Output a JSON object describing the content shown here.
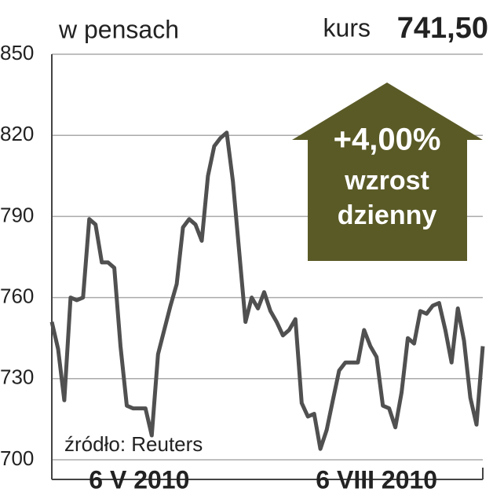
{
  "chart_data": {
    "type": "line",
    "subtitle": "w pensach",
    "price_label": "kurs",
    "price_value": "741,50",
    "change": "+4,00%",
    "change_text": [
      "wzrost",
      "dzienny"
    ],
    "source": "źródło: Reuters",
    "categories": [
      null,
      null,
      null,
      null,
      null,
      null,
      null,
      null,
      null,
      null,
      null,
      null,
      null,
      null,
      null,
      "6 V 2010",
      null,
      null,
      null,
      null,
      null,
      null,
      null,
      null,
      null,
      null,
      null,
      null,
      null,
      null,
      null,
      null,
      null,
      null,
      null,
      null,
      null,
      null,
      null,
      null,
      null,
      null,
      null,
      null,
      null,
      null,
      null,
      null,
      null,
      null,
      null,
      null,
      null,
      "6 VIII 2010",
      null,
      null,
      null,
      null,
      null,
      null,
      null,
      null,
      null,
      null,
      null,
      null,
      null,
      null,
      null,
      null
    ],
    "series": [
      {
        "name": "kurs",
        "color": "#505050",
        "values": [
          751,
          741,
          722,
          760,
          759,
          760,
          789,
          787,
          773,
          773,
          771,
          742,
          720,
          719,
          719,
          719,
          709,
          739,
          748,
          757,
          765,
          786,
          789,
          787,
          781,
          805,
          816,
          819,
          821,
          803,
          777,
          751,
          760,
          756,
          762,
          755,
          751,
          746,
          748,
          752,
          721,
          716,
          717,
          704,
          711,
          722,
          733,
          736,
          736,
          736,
          748,
          742,
          738,
          720,
          719,
          712,
          725,
          745,
          743,
          755,
          754,
          757,
          758,
          748,
          736,
          756,
          744,
          723,
          713,
          742
        ]
      }
    ],
    "ylim": [
      700,
      850
    ],
    "yticks": [
      700,
      730,
      760,
      790,
      820,
      850
    ],
    "grid": true,
    "arrow_color": "#5a5a27"
  }
}
